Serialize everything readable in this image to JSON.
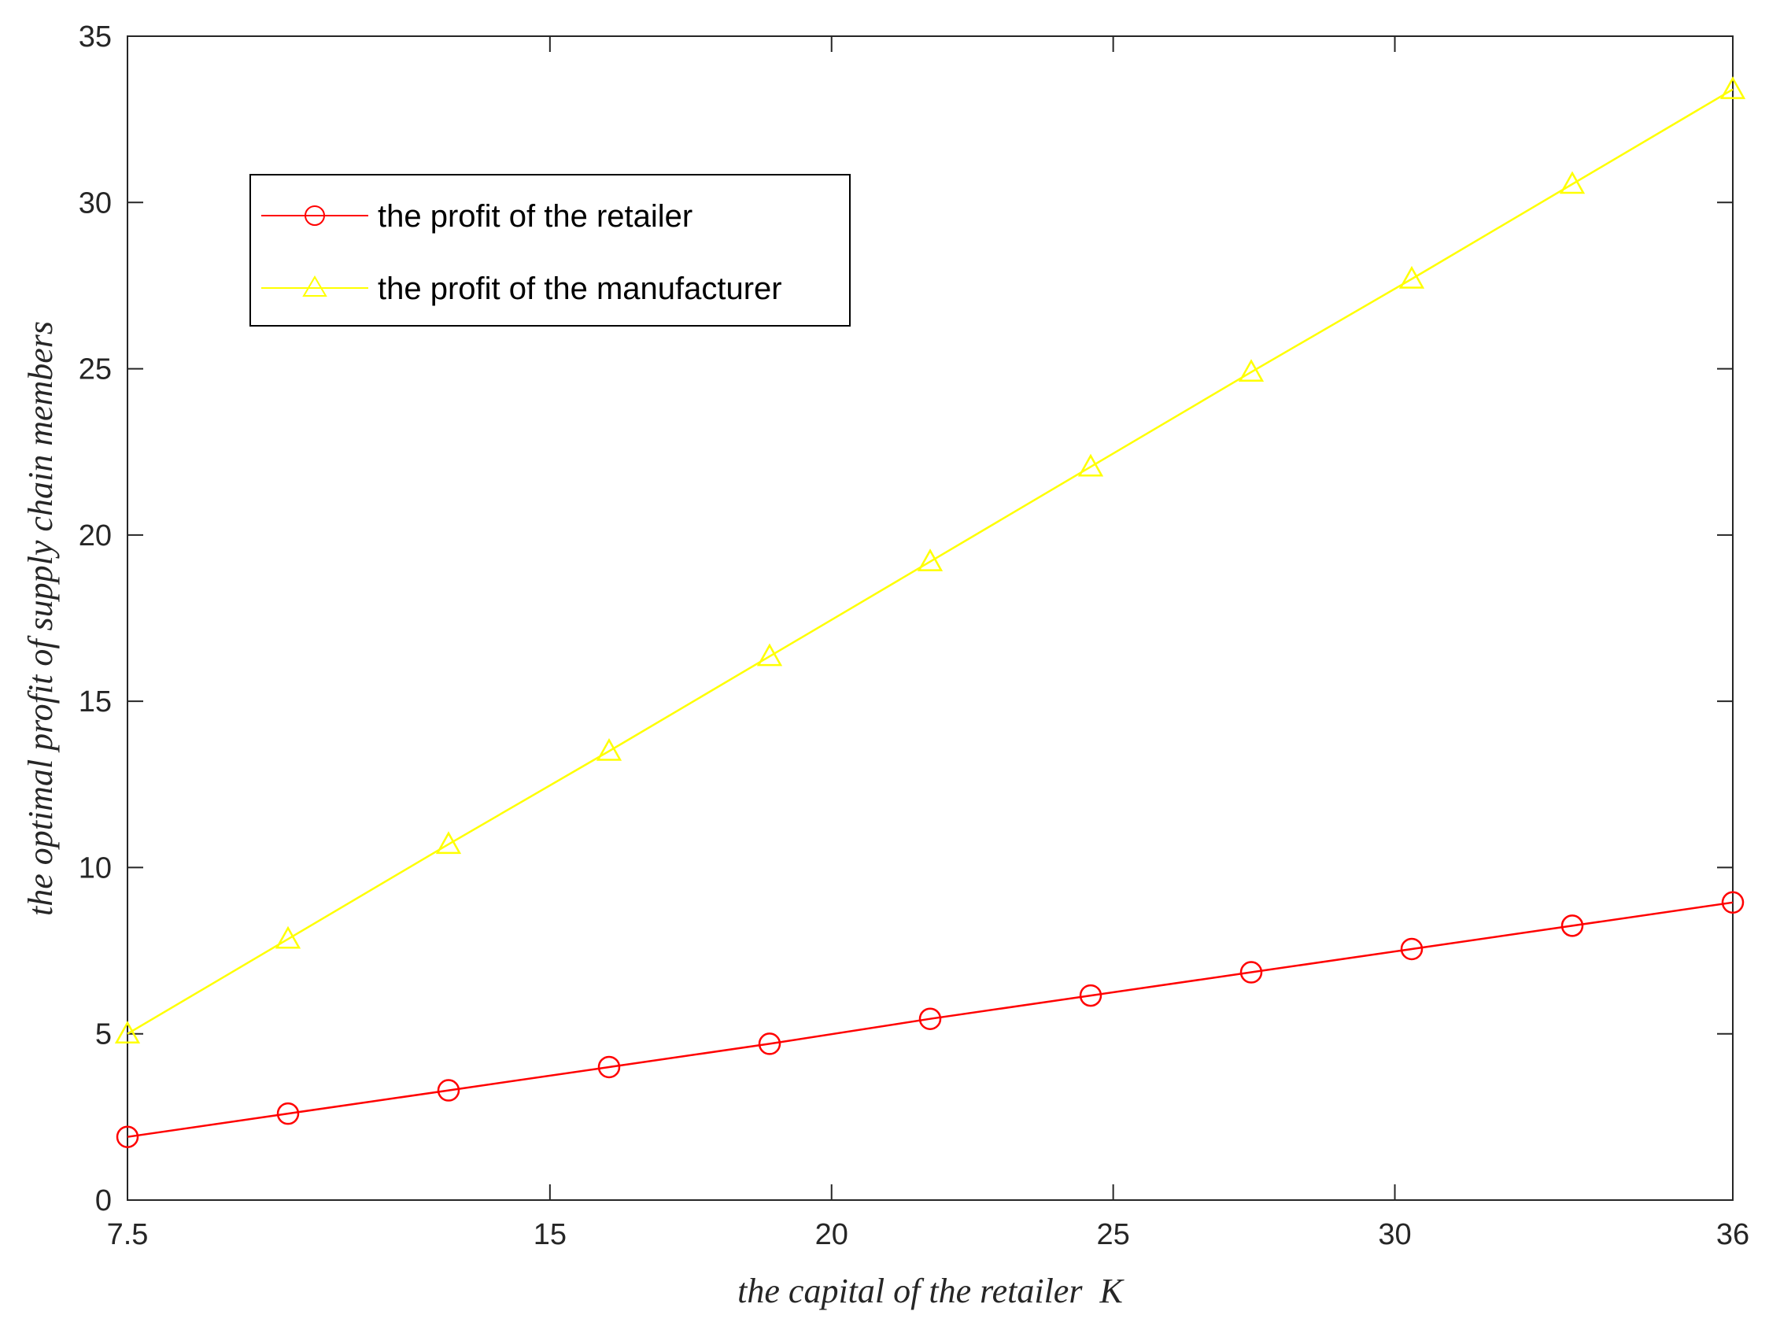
{
  "chart_data": {
    "type": "line",
    "title": "",
    "xlabel": "the capital of the retailer  K",
    "ylabel": "the optimal profit of supply chain members",
    "xlim": [
      7.5,
      36
    ],
    "ylim": [
      0,
      35
    ],
    "xticks": [
      7.5,
      15,
      20,
      25,
      30,
      36
    ],
    "xtick_labels": [
      "7.5",
      "15",
      "20",
      "25",
      "30",
      "36"
    ],
    "yticks": [
      0,
      5,
      10,
      15,
      20,
      25,
      30,
      35
    ],
    "ytick_labels": [
      "0",
      "5",
      "10",
      "15",
      "20",
      "25",
      "30",
      "35"
    ],
    "grid": false,
    "legend_position": "upper-left",
    "x": [
      7.5,
      10.35,
      13.2,
      16.05,
      18.9,
      21.75,
      24.6,
      27.45,
      30.3,
      33.15,
      36
    ],
    "series": [
      {
        "name": "the profit of the retailer",
        "color": "#ff0000",
        "marker": "circle",
        "values": [
          1.9,
          2.6,
          3.3,
          4.0,
          4.7,
          5.45,
          6.15,
          6.85,
          7.55,
          8.25,
          8.95
        ]
      },
      {
        "name": "the profit of the manufacturer",
        "color": "#ffff00",
        "marker": "triangle",
        "values": [
          5.0,
          7.85,
          10.7,
          13.5,
          16.35,
          19.2,
          22.05,
          24.9,
          27.7,
          30.55,
          33.4
        ]
      }
    ]
  }
}
